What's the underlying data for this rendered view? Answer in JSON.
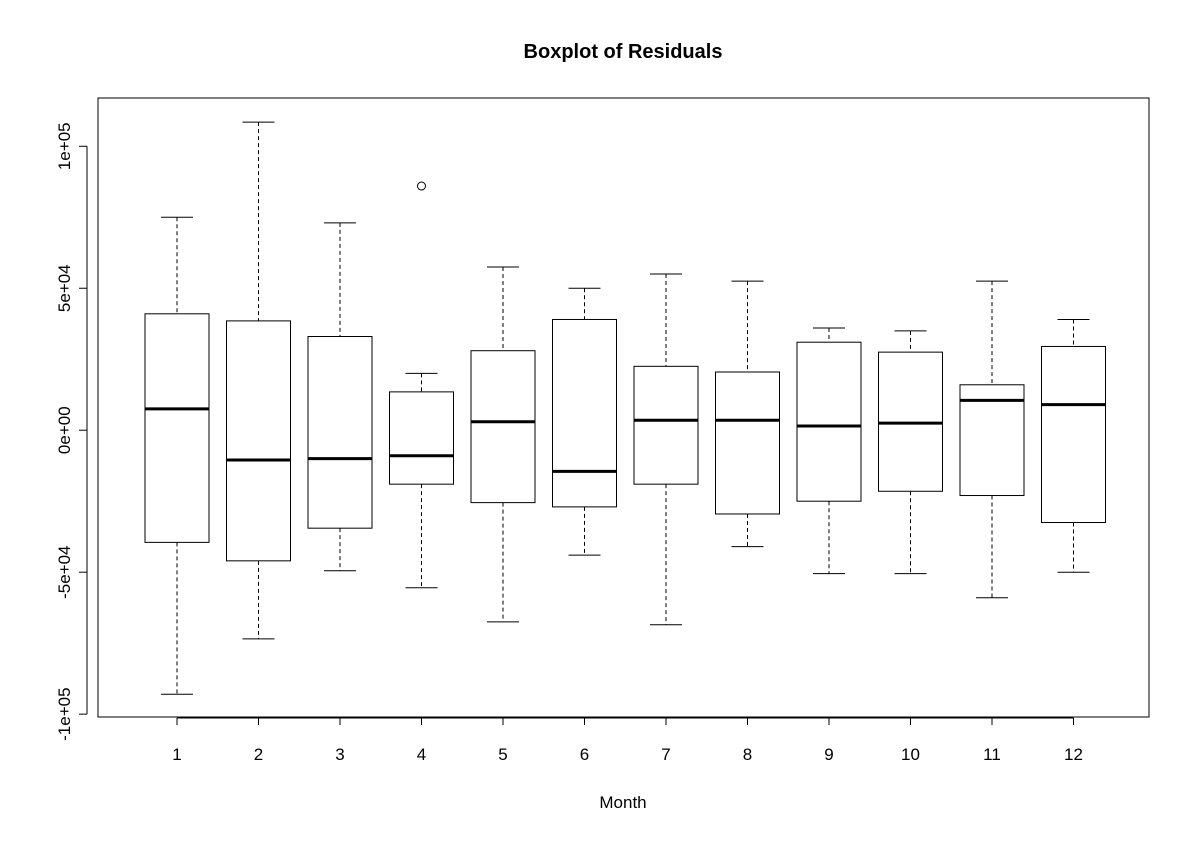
{
  "chart_data": {
    "type": "boxplot",
    "title": "Boxplot of Residuals",
    "xlabel": "Month",
    "ylabel": "",
    "categories": [
      "1",
      "2",
      "3",
      "4",
      "5",
      "6",
      "7",
      "8",
      "9",
      "10",
      "11",
      "12"
    ],
    "y_ticks": [
      {
        "value": -100000,
        "label": "-1e+05"
      },
      {
        "value": -50000,
        "label": "-5e+04"
      },
      {
        "value": 0,
        "label": "0e+00"
      },
      {
        "value": 50000,
        "label": "5e+04"
      },
      {
        "value": 100000,
        "label": "1e+05"
      }
    ],
    "ylim": [
      -101000,
      117000
    ],
    "boxes": [
      {
        "month": "1",
        "min": -93000,
        "q1": -39500,
        "median": 7500,
        "q3": 41000,
        "max": 75000
      },
      {
        "month": "2",
        "min": -73500,
        "q1": -46000,
        "median": -10500,
        "q3": 38500,
        "max": 108500
      },
      {
        "month": "3",
        "min": -49500,
        "q1": -34500,
        "median": -10000,
        "q3": 33000,
        "max": 73000
      },
      {
        "month": "4",
        "min": -55500,
        "q1": -19000,
        "median": -9000,
        "q3": 13500,
        "max": 20000,
        "outliers": [
          86000
        ]
      },
      {
        "month": "5",
        "min": -67500,
        "q1": -25500,
        "median": 3000,
        "q3": 28000,
        "max": 57500
      },
      {
        "month": "6",
        "min": -44000,
        "q1": -27000,
        "median": -14500,
        "q3": 39000,
        "max": 50000
      },
      {
        "month": "7",
        "min": -68500,
        "q1": -19000,
        "median": 3500,
        "q3": 22500,
        "max": 55000
      },
      {
        "month": "8",
        "min": -41000,
        "q1": -29500,
        "median": 3500,
        "q3": 20500,
        "max": 52500
      },
      {
        "month": "9",
        "min": -50500,
        "q1": -25000,
        "median": 1500,
        "q3": 31000,
        "max": 36000
      },
      {
        "month": "10",
        "min": -50500,
        "q1": -21500,
        "median": 2500,
        "q3": 27500,
        "max": 35000
      },
      {
        "month": "11",
        "min": -59000,
        "q1": -23000,
        "median": 10500,
        "q3": 16000,
        "max": 52500
      },
      {
        "month": "12",
        "min": -50000,
        "q1": -32500,
        "median": 9000,
        "q3": 29500,
        "max": 39000
      }
    ],
    "grid": false,
    "legend": "none"
  }
}
